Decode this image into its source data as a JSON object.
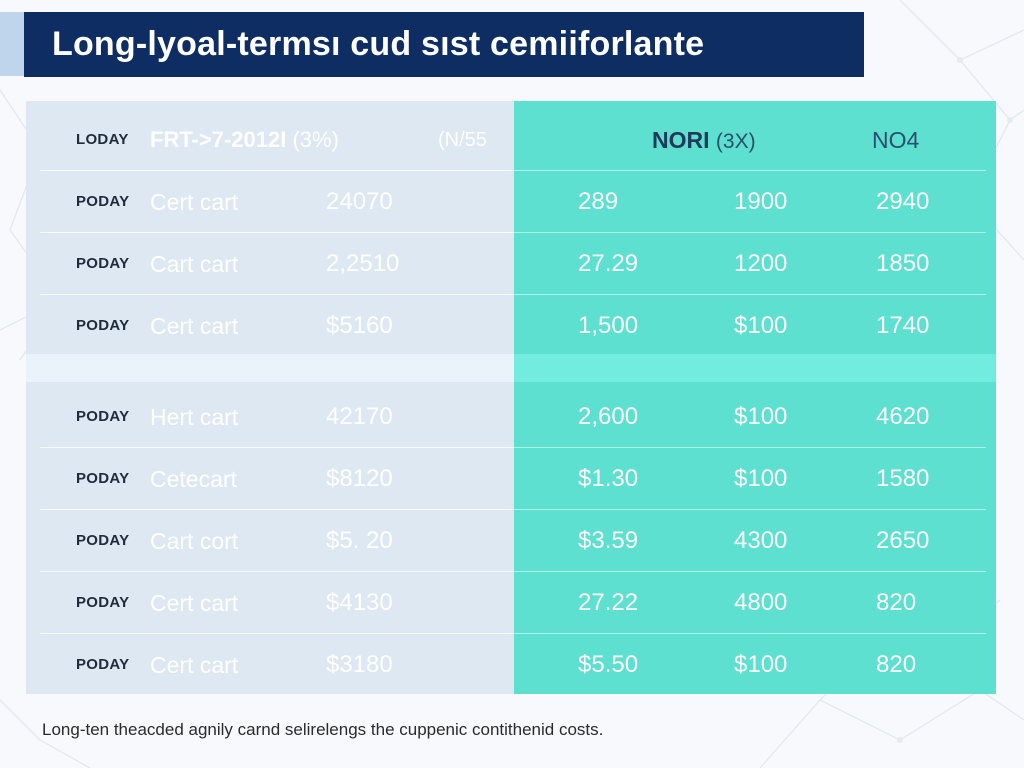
{
  "colors": {
    "banner": "#0e2d63",
    "left_panel": "#dde8f2",
    "right_panel": "#5de0cf",
    "text_dark": "#1f2b3a"
  },
  "title": "Long-lyoal-termsı cud sıst cemiiforlante",
  "header": {
    "label": "LODAY",
    "name": "FRT->7-2012I",
    "name_suffix": "(3%)",
    "val": "(N/55",
    "nori": "NORI",
    "nori_suffix": "(3X)",
    "col_c": "NO4"
  },
  "rows_top": [
    {
      "label": "PODAY",
      "name": "Cert cart",
      "val": "24070",
      "a": "289",
      "b": "1900",
      "c": "2940"
    },
    {
      "label": "PODAY",
      "name": "Cart cart",
      "val": "2,2510",
      "a": "27.29",
      "b": "1200",
      "c": "1850"
    },
    {
      "label": "PODAY",
      "name": "Cert cart",
      "val": "$5160",
      "a": "1,500",
      "b": "$100",
      "c": "1740"
    }
  ],
  "rows_bottom": [
    {
      "label": "PODAY",
      "name": "Hert cart",
      "val": "42170",
      "a": "2,600",
      "b": "$100",
      "c": "4620"
    },
    {
      "label": "PODAY",
      "name": "Cetecart",
      "val": "$8120",
      "a": "$1.30",
      "b": "$100",
      "c": "1580"
    },
    {
      "label": "PODAY",
      "name": "Cart cort",
      "val": "$5. 20",
      "a": "$3.59",
      "b": "4300",
      "c": "2650"
    },
    {
      "label": "PODAY",
      "name": "Cert cart",
      "val": "$4130",
      "a": "27.22",
      "b": "4800",
      "c": "820"
    },
    {
      "label": "PODAY",
      "name": "Cert cart",
      "val": "$3180",
      "a": "$5.50",
      "b": "$100",
      "c": "820"
    }
  ],
  "footnote": "Long-ten theacded agnily carnd selirelengs the cuppenic contithenid costs."
}
